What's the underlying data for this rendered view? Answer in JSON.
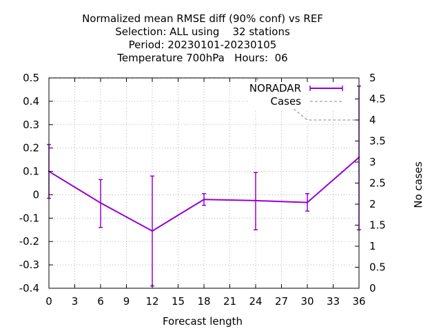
{
  "chart_data": {
    "type": "line",
    "title_lines": [
      "Normalized mean RMSE diff (90% conf) vs REF",
      "Selection: ALL using    32 stations",
      "Period: 20230101-20230105",
      "Temperature 700hPa   Hours:  06"
    ],
    "xlabel": "Forecast length",
    "ylabel": "",
    "y2label": "No cases",
    "xlim": [
      0,
      36
    ],
    "ylim": [
      -0.4,
      0.5
    ],
    "y2lim": [
      0,
      5
    ],
    "x_ticks": [
      "0",
      "3",
      "6",
      "9",
      "12",
      "15",
      "18",
      "21",
      "24",
      "27",
      "30",
      "33",
      "36"
    ],
    "y_ticks": [
      "-0.4",
      "-0.3",
      "-0.2",
      "-0.1",
      "0",
      "0.1",
      "0.2",
      "0.3",
      "0.4",
      "0.5"
    ],
    "y2_ticks": [
      "0",
      "0.5",
      "1",
      "1.5",
      "2",
      "2.5",
      "3",
      "3.5",
      "4",
      "4.5",
      "5"
    ],
    "grid": true,
    "legend_position": "top-right",
    "series": [
      {
        "name": "NORADAR",
        "color": "#9400d3",
        "style": "line-errorbars",
        "x": [
          0,
          6,
          12,
          18,
          24,
          30,
          36
        ],
        "y": [
          0.1,
          -0.035,
          -0.155,
          -0.02,
          -0.025,
          -0.033,
          0.16
        ],
        "err_low": [
          -0.015,
          -0.14,
          -0.39,
          -0.045,
          -0.15,
          -0.07,
          -0.15
        ],
        "err_high": [
          0.215,
          0.065,
          0.08,
          0.005,
          0.095,
          0.005,
          0.465
        ]
      },
      {
        "name": "Cases",
        "color": "#a0a0a0",
        "style": "dashed",
        "axis": "y2",
        "x": [
          0,
          6,
          12,
          18,
          24,
          30,
          36
        ],
        "y": [
          5,
          5,
          5,
          5,
          5,
          4,
          4
        ]
      }
    ]
  }
}
